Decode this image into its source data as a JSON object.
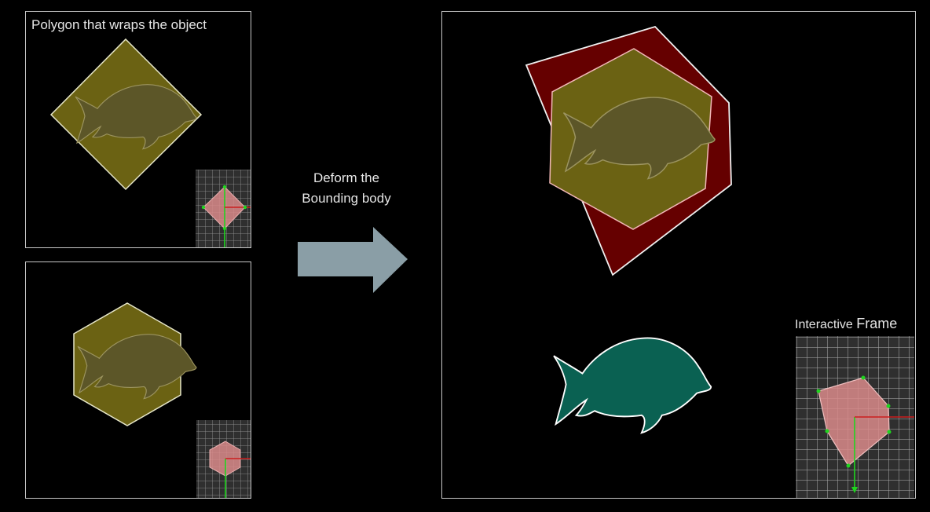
{
  "top_panel": {
    "title": "Polygon that wraps the object"
  },
  "arrow": {
    "line1": "Deform the",
    "line2": "Bounding body"
  },
  "interactive_frame": {
    "label_part1": "Interactive ",
    "label_part2": "Frame"
  },
  "colors": {
    "olive_fill": "#6b6213",
    "fish_inner": "#5c5628",
    "dark_red": "#650000",
    "teal_fish": "#0a6152",
    "arrow": "#8a9ea6",
    "grid_bg": "#2f2f2f",
    "grid_line": "#9a9a9a",
    "pink_poly": "#d98a8a",
    "axis_green": "#1fd51f",
    "axis_red": "#cc1f1f"
  }
}
